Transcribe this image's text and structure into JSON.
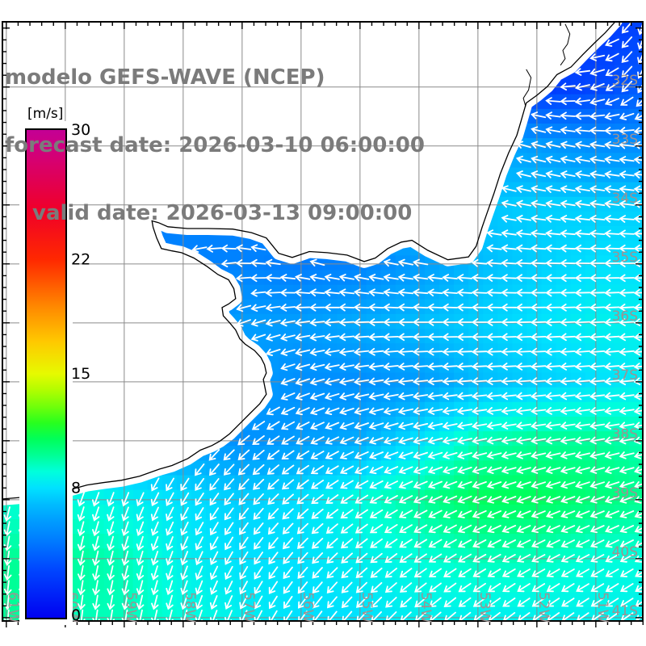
{
  "title_block": {
    "line1": "modelo GEFS-WAVE (NCEP)",
    "line2": "forecast date: 2026-03-10 06:00:00",
    "line3": "valid date: 2026-03-13 09:00:00"
  },
  "colorbar": {
    "unit": "[m/s]",
    "min": 0,
    "max": 30,
    "tick_values": [
      30,
      22,
      15,
      8,
      0
    ],
    "tick_labels": [
      "30",
      "22",
      "15",
      "8",
      "0"
    ],
    "stops": [
      [
        0,
        "#0000f0"
      ],
      [
        3,
        "#0046ff"
      ],
      [
        5,
        "#0082ff"
      ],
      [
        6.5,
        "#00aaff"
      ],
      [
        8,
        "#00e1ff"
      ],
      [
        9,
        "#00ffdc"
      ],
      [
        10,
        "#00ff96"
      ],
      [
        11,
        "#00ff5a"
      ],
      [
        12,
        "#28ff1e"
      ],
      [
        13.5,
        "#96ff00"
      ],
      [
        15,
        "#e6fa00"
      ],
      [
        17,
        "#ffc800"
      ],
      [
        19,
        "#ff8c00"
      ],
      [
        22,
        "#ff2800"
      ],
      [
        25,
        "#f00028"
      ],
      [
        28,
        "#d7006e"
      ],
      [
        30,
        "#c30096"
      ]
    ]
  },
  "chart_data": {
    "type": "heatmap",
    "title": "GEFS-WAVE wind/wave speed field with direction arrows",
    "units": "m/s",
    "legend_position": "left",
    "grid": true,
    "extent": {
      "lon_min": -61.08,
      "lon_max": -50.19,
      "lat_min": -41.07,
      "lat_max": -30.88
    },
    "grid_lons": [
      -61,
      -60,
      -59,
      -58,
      -57,
      -56,
      -55,
      -54,
      -53,
      -52,
      -51,
      -50
    ],
    "grid_lats": [
      -31,
      -32,
      -33,
      -34,
      -35,
      -36,
      -37,
      -38,
      -39,
      -40,
      -41
    ],
    "speed": [
      [
        6.0,
        6.0,
        6.0,
        6.0,
        6.0,
        6.0,
        5.0,
        4.0,
        3.5,
        3.0,
        2.5,
        3.0
      ],
      [
        6.0,
        6.0,
        6.0,
        6.0,
        6.0,
        5.5,
        5.0,
        4.5,
        3.5,
        2.5,
        3.0,
        4.0
      ],
      [
        6.0,
        6.0,
        6.0,
        6.0,
        5.5,
        5.5,
        6.0,
        6.5,
        6.5,
        6.0,
        5.5,
        5.5
      ],
      [
        5.0,
        5.0,
        5.0,
        5.0,
        5.0,
        5.5,
        6.5,
        7.0,
        7.2,
        7.5,
        7.5,
        7.5
      ],
      [
        4.5,
        4.5,
        4.8,
        5.0,
        5.0,
        4.8,
        5.0,
        6.0,
        7.0,
        7.5,
        8.0,
        8.0
      ],
      [
        5.0,
        5.0,
        5.5,
        5.5,
        6.0,
        6.0,
        6.5,
        7.0,
        7.5,
        8.0,
        8.5,
        8.5
      ],
      [
        6.0,
        6.0,
        6.0,
        6.5,
        6.0,
        5.5,
        5.5,
        6.0,
        7.0,
        7.5,
        8.0,
        8.5
      ],
      [
        7.0,
        7.0,
        6.5,
        6.0,
        5.5,
        6.0,
        6.5,
        8.0,
        9.5,
        10.0,
        10.0,
        9.5
      ],
      [
        9.0,
        9.0,
        8.5,
        8.0,
        7.5,
        8.0,
        9.0,
        10.0,
        11.0,
        11.0,
        10.5,
        10.0
      ],
      [
        10.0,
        10.0,
        9.5,
        8.5,
        8.0,
        8.0,
        8.5,
        9.0,
        9.5,
        9.5,
        9.0,
        9.0
      ],
      [
        10.0,
        9.5,
        9.5,
        9.0,
        8.5,
        8.0,
        8.0,
        8.5,
        8.5,
        8.5,
        8.5,
        8.5
      ]
    ],
    "direction_toward_deg": [
      [
        0,
        0,
        0,
        0,
        0,
        0,
        30,
        20,
        10,
        350,
        270,
        180
      ],
      [
        300,
        300,
        300,
        300,
        300,
        300,
        310,
        300,
        290,
        280,
        250,
        200
      ],
      [
        295,
        295,
        295,
        295,
        295,
        295,
        300,
        295,
        290,
        285,
        280,
        275
      ],
      [
        290,
        290,
        290,
        290,
        300,
        305,
        300,
        290,
        285,
        280,
        278,
        275
      ],
      [
        225,
        228,
        232,
        240,
        270,
        285,
        285,
        280,
        275,
        272,
        270,
        268
      ],
      [
        225,
        228,
        232,
        238,
        250,
        262,
        268,
        270,
        270,
        268,
        267,
        266
      ],
      [
        220,
        222,
        226,
        232,
        242,
        252,
        260,
        264,
        266,
        266,
        265,
        264
      ],
      [
        205,
        208,
        212,
        220,
        230,
        240,
        248,
        254,
        258,
        260,
        260,
        258
      ],
      [
        195,
        198,
        202,
        210,
        220,
        230,
        238,
        244,
        248,
        250,
        250,
        248
      ],
      [
        188,
        190,
        195,
        202,
        212,
        222,
        230,
        236,
        240,
        242,
        242,
        240
      ],
      [
        185,
        186,
        190,
        196,
        205,
        215,
        222,
        228,
        232,
        234,
        235,
        235
      ]
    ],
    "lat_ticks": [
      {
        "lat": -32,
        "label": "32S"
      },
      {
        "lat": -33,
        "label": "33S"
      },
      {
        "lat": -34,
        "label": "34S"
      },
      {
        "lat": -35,
        "label": "35S"
      },
      {
        "lat": -36,
        "label": "36S"
      },
      {
        "lat": -37,
        "label": "37S"
      },
      {
        "lat": -38,
        "label": "38S"
      },
      {
        "lat": -39,
        "label": "39S"
      },
      {
        "lat": -40,
        "label": "40S"
      },
      {
        "lat": -41,
        "label": "41S"
      }
    ],
    "lon_ticks": [
      {
        "lon": -61,
        "label": "61W"
      },
      {
        "lon": -60,
        "label": "60W"
      },
      {
        "lon": -59,
        "label": "59W"
      },
      {
        "lon": -58,
        "label": "58W"
      },
      {
        "lon": -57,
        "label": "57W"
      },
      {
        "lon": -56,
        "label": "56W"
      },
      {
        "lon": -55,
        "label": "55W"
      },
      {
        "lon": -54,
        "label": "54W"
      },
      {
        "lon": -53,
        "label": "53W"
      },
      {
        "lon": -52,
        "label": "52W"
      },
      {
        "lon": -51,
        "label": "51W"
      }
    ],
    "coastline": [
      [
        -50.66,
        -30.88
      ],
      [
        -50.84,
        -31.08
      ],
      [
        -51.02,
        -31.25
      ],
      [
        -51.22,
        -31.45
      ],
      [
        -51.42,
        -31.66
      ],
      [
        -51.66,
        -31.79
      ],
      [
        -51.82,
        -31.99
      ],
      [
        -52.0,
        -32.14
      ],
      [
        -52.18,
        -32.27
      ],
      [
        -52.27,
        -32.58
      ],
      [
        -52.34,
        -32.82
      ],
      [
        -52.48,
        -33.12
      ],
      [
        -52.62,
        -33.47
      ],
      [
        -52.73,
        -33.81
      ],
      [
        -52.85,
        -34.15
      ],
      [
        -52.93,
        -34.38
      ],
      [
        -53.03,
        -34.7
      ],
      [
        -53.16,
        -34.88
      ],
      [
        -53.51,
        -34.93
      ],
      [
        -53.85,
        -34.77
      ],
      [
        -54.12,
        -34.6
      ],
      [
        -54.3,
        -34.63
      ],
      [
        -54.53,
        -34.74
      ],
      [
        -54.74,
        -34.9
      ],
      [
        -54.93,
        -34.96
      ],
      [
        -55.22,
        -34.85
      ],
      [
        -55.56,
        -34.81
      ],
      [
        -55.86,
        -34.79
      ],
      [
        -56.15,
        -34.89
      ],
      [
        -56.38,
        -34.82
      ],
      [
        -56.59,
        -34.56
      ],
      [
        -56.84,
        -34.47
      ],
      [
        -57.16,
        -34.41
      ],
      [
        -57.58,
        -34.4
      ],
      [
        -57.93,
        -34.4
      ],
      [
        -58.26,
        -34.37
      ],
      [
        -58.42,
        -34.3
      ],
      [
        -58.53,
        -34.27
      ],
      [
        -58.51,
        -34.38
      ],
      [
        -58.45,
        -34.56
      ],
      [
        -58.37,
        -34.74
      ],
      [
        -58.19,
        -34.78
      ],
      [
        -58.03,
        -34.81
      ],
      [
        -57.82,
        -34.9
      ],
      [
        -57.6,
        -35.04
      ],
      [
        -57.41,
        -35.18
      ],
      [
        -57.23,
        -35.27
      ],
      [
        -57.14,
        -35.42
      ],
      [
        -57.11,
        -35.59
      ],
      [
        -57.23,
        -35.68
      ],
      [
        -57.34,
        -35.74
      ],
      [
        -57.32,
        -35.88
      ],
      [
        -57.21,
        -36.0
      ],
      [
        -57.11,
        -36.12
      ],
      [
        -57.04,
        -36.27
      ],
      [
        -56.95,
        -36.36
      ],
      [
        -56.79,
        -36.47
      ],
      [
        -56.68,
        -36.59
      ],
      [
        -56.62,
        -36.71
      ],
      [
        -56.59,
        -36.85
      ],
      [
        -56.64,
        -36.96
      ],
      [
        -56.59,
        -37.21
      ],
      [
        -56.7,
        -37.37
      ],
      [
        -56.86,
        -37.53
      ],
      [
        -57.03,
        -37.7
      ],
      [
        -57.21,
        -37.88
      ],
      [
        -57.37,
        -38.0
      ],
      [
        -57.51,
        -38.08
      ],
      [
        -57.71,
        -38.16
      ],
      [
        -57.92,
        -38.3
      ],
      [
        -58.19,
        -38.42
      ],
      [
        -58.4,
        -38.48
      ],
      [
        -58.74,
        -38.6
      ],
      [
        -59.05,
        -38.67
      ],
      [
        -59.36,
        -38.71
      ],
      [
        -59.63,
        -38.75
      ],
      [
        -59.99,
        -38.85
      ],
      [
        -60.42,
        -38.92
      ],
      [
        -60.73,
        -38.96
      ],
      [
        -61.1,
        -38.99
      ]
    ],
    "lagoons": [
      [
        [
          -51.52,
          -30.93
        ],
        [
          -51.44,
          -31.1
        ],
        [
          -51.48,
          -31.27
        ],
        [
          -51.56,
          -31.38
        ],
        [
          -51.52,
          -31.52
        ],
        [
          -51.6,
          -31.63
        ]
      ],
      [
        [
          -52.18,
          -31.7
        ],
        [
          -52.1,
          -31.84
        ],
        [
          -52.14,
          -32.05
        ],
        [
          -52.23,
          -32.19
        ],
        [
          -52.19,
          -32.33
        ]
      ]
    ]
  }
}
